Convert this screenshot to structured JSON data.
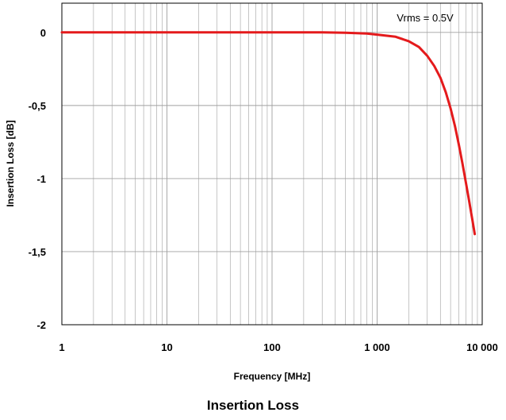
{
  "caption": "Insertion Loss",
  "chart_data": {
    "type": "line",
    "title": "",
    "xlabel": "Frequency [MHz]",
    "ylabel": "Insertion Loss [dB]",
    "x_scale": "log",
    "xlim": [
      1,
      10000
    ],
    "ylim": [
      -2,
      0.2
    ],
    "grid": true,
    "x_ticks": [
      1,
      10,
      100,
      1000,
      10000
    ],
    "x_tick_labels": [
      "1",
      "10",
      "100",
      "1 000",
      "10 000"
    ],
    "y_ticks": [
      0,
      -0.5,
      -1,
      -1.5,
      -2
    ],
    "y_tick_labels": [
      "0",
      "-0,5",
      "-1",
      "-1,5",
      "-2"
    ],
    "annotation": "Vrms = 0.5V",
    "colors": {
      "series": "#e41a1c",
      "grid": "#a0a0a0"
    },
    "series": [
      {
        "name": "",
        "x": [
          1,
          10,
          100,
          300,
          500,
          800,
          1000,
          1500,
          2000,
          2500,
          3000,
          3500,
          4000,
          4500,
          5000,
          5500,
          6000,
          6500,
          7000,
          7500,
          8000,
          8500
        ],
        "y": [
          0,
          0,
          0,
          0,
          -0.002,
          -0.008,
          -0.015,
          -0.03,
          -0.06,
          -0.1,
          -0.16,
          -0.23,
          -0.31,
          -0.41,
          -0.52,
          -0.64,
          -0.77,
          -0.9,
          -1.03,
          -1.15,
          -1.27,
          -1.38
        ]
      }
    ]
  }
}
